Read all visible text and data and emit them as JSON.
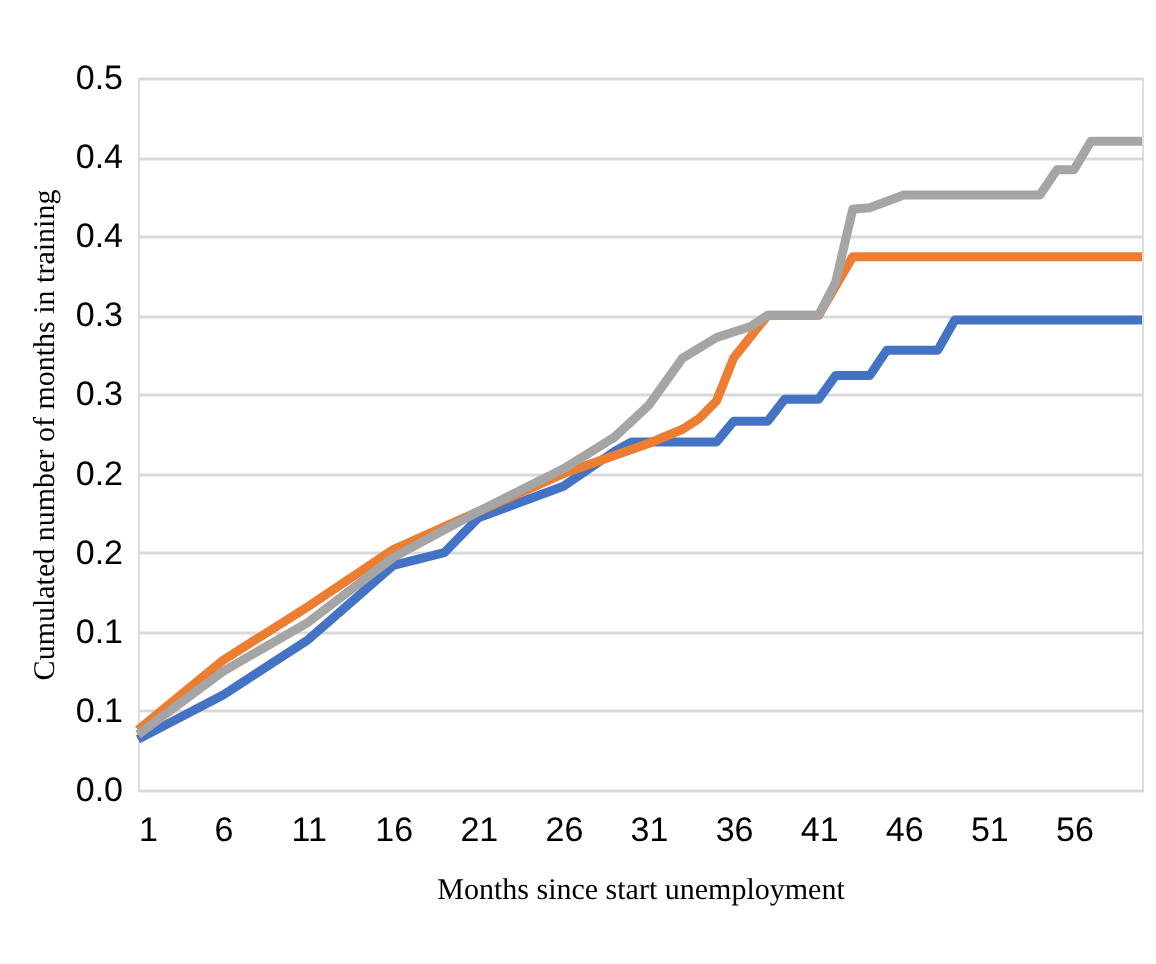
{
  "chart_data": {
    "type": "line",
    "xlabel": "Months since start unemployment",
    "ylabel": "Cumulated number of months in training",
    "xlim": [
      1,
      60
    ],
    "xticks": [
      1,
      6,
      11,
      16,
      21,
      26,
      31,
      36,
      41,
      46,
      51,
      56
    ],
    "ylim": [
      0,
      0.45
    ],
    "yticks": [
      {
        "value": 0,
        "label": "0.0"
      },
      {
        "value": 0.05,
        "label": "0.1"
      },
      {
        "value": 0.1,
        "label": "0.1"
      },
      {
        "value": 0.15,
        "label": "0.2"
      },
      {
        "value": 0.2,
        "label": "0.2"
      },
      {
        "value": 0.25,
        "label": "0.3"
      },
      {
        "value": 0.3,
        "label": "0.3"
      },
      {
        "value": 0.35,
        "label": "0.4"
      },
      {
        "value": 0.4,
        "label": "0.4"
      },
      {
        "value": 0.45,
        "label": "0.5"
      }
    ],
    "grid": "y",
    "marker": "none",
    "line_style": "solid",
    "legend": false,
    "series": [
      {
        "color": "#4472c4",
        "x": [
          1,
          6,
          11,
          16,
          19,
          21,
          26,
          29,
          30,
          35,
          36,
          38,
          39,
          41,
          42,
          44,
          45,
          48,
          49,
          60
        ],
        "values": [
          0.032,
          0.06,
          0.095,
          0.142,
          0.15,
          0.172,
          0.192,
          0.214,
          0.22,
          0.22,
          0.233,
          0.233,
          0.247,
          0.247,
          0.262,
          0.262,
          0.278,
          0.278,
          0.297,
          0.297
        ]
      },
      {
        "color": "#ed7d31",
        "x": [
          1,
          6,
          11,
          16,
          21,
          26,
          31,
          33,
          34,
          35,
          36,
          38,
          41,
          43,
          60
        ],
        "values": [
          0.038,
          0.082,
          0.116,
          0.152,
          0.176,
          0.2,
          0.219,
          0.228,
          0.235,
          0.246,
          0.273,
          0.3,
          0.3,
          0.337,
          0.337
        ]
      },
      {
        "color": "#a5a5a5",
        "x": [
          1,
          6,
          11,
          16,
          21,
          26,
          29,
          31,
          33,
          35,
          37,
          38,
          41,
          42,
          43,
          44,
          46,
          54,
          55,
          56,
          57,
          60
        ],
        "values": [
          0.035,
          0.075,
          0.106,
          0.147,
          0.176,
          0.203,
          0.223,
          0.243,
          0.273,
          0.286,
          0.293,
          0.3,
          0.3,
          0.321,
          0.367,
          0.368,
          0.376,
          0.376,
          0.392,
          0.392,
          0.41,
          0.41
        ]
      }
    ]
  }
}
